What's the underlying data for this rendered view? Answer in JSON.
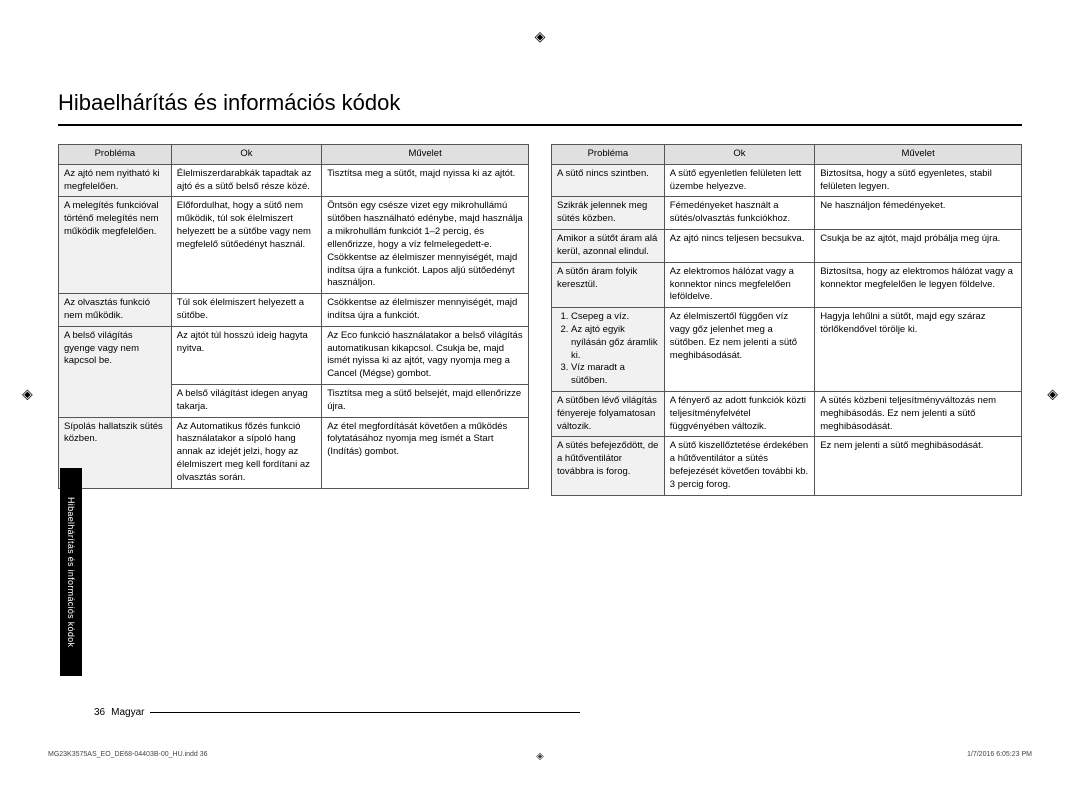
{
  "title": "Hibaelhárítás és információs kódok",
  "sideTab": "Hibaelhárítás és információs kódok",
  "headers": {
    "problem": "Probléma",
    "cause": "Ok",
    "action": "Művelet"
  },
  "leftTable": [
    {
      "problem": "Az ajtó nem nyitható ki megfelelően.",
      "cause": "Élelmiszerdarabkák tapadtak az ajtó és a sütő belső része közé.",
      "action": "Tisztítsa meg a sütőt, majd nyissa ki az ajtót."
    },
    {
      "problem": "A melegítés funkcióval történő melegítés nem működik megfelelően.",
      "cause": "Előfordulhat, hogy a sütő nem működik, túl sok élelmiszert helyezett be a sütőbe vagy nem megfelelő sütőedényt használ.",
      "action": "Öntsön egy csésze vizet egy mikrohullámú sütőben használható edénybe, majd használja a mikrohullám funkciót 1–2 percig, és ellenőrizze, hogy a víz felmelegedett-e. Csökkentse az élelmiszer mennyiségét, majd indítsa újra a funkciót. Lapos aljú sütőedényt használjon."
    },
    {
      "problem": "Az olvasztás funkció nem működik.",
      "cause": "Túl sok élelmiszert helyezett a sütőbe.",
      "action": "Csökkentse az élelmiszer mennyiségét, majd indítsa újra a funkciót."
    },
    {
      "problem": "A belső világítás gyenge vagy nem kapcsol be.",
      "causes": [
        "Az ajtót túl hosszú ideig hagyta nyitva.",
        "A belső világítást idegen anyag takarja."
      ],
      "actions": [
        "Az Eco funkció használatakor a belső világítás automatikusan kikapcsol. Csukja be, majd ismét nyissa ki az ajtót, vagy nyomja meg a Cancel (Mégse) gombot.",
        "Tisztítsa meg a sütő belsejét, majd ellenőrizze újra."
      ]
    },
    {
      "problem": "Sípolás hallatszik sütés közben.",
      "cause": "Az Automatikus főzés funkció használatakor a sípoló hang annak az idejét jelzi, hogy az élelmiszert meg kell fordítani az olvasztás során.",
      "action": "Az étel megfordítását követően a működés folytatásához nyomja meg ismét a Start (Indítás) gombot."
    }
  ],
  "rightTable": [
    {
      "problem": "A sütő nincs szintben.",
      "cause": "A sütő egyenletlen felületen lett üzembe helyezve.",
      "action": "Biztosítsa, hogy a sütő egyenletes, stabil felületen legyen."
    },
    {
      "problem": "Szikrák jelennek meg sütés közben.",
      "cause": "Fémedényeket használt a sütés/olvasztás funkciókhoz.",
      "action": "Ne használjon fémedényeket."
    },
    {
      "problem": "Amikor a sütőt áram alá kerül, azonnal elindul.",
      "cause": "Az ajtó nincs teljesen becsukva.",
      "action": "Csukja be az ajtót, majd próbálja meg újra."
    },
    {
      "problem": "A sütőn áram folyik keresztül.",
      "cause": "Az elektromos hálózat vagy a konnektor nincs megfelelően leföldelve.",
      "action": "Biztosítsa, hogy az elektromos hálózat vagy a konnektor megfelelően le legyen földelve."
    },
    {
      "problem_list": [
        "Csepeg a víz.",
        "Az ajtó egyik nyílásán gőz áramlik ki.",
        "Víz maradt a sütőben."
      ],
      "cause": "Az élelmiszertől függően víz vagy gőz jelenhet meg a sütőben. Ez nem jelenti a sütő meghibásodását.",
      "action": "Hagyja lehűlni a sütőt, majd egy száraz törlőkendővel törölje ki."
    },
    {
      "problem": "A sütőben lévő világítás fényereje folyamatosan változik.",
      "cause": "A fényerő az adott funkciók közti teljesítményfelvétel függvényében változik.",
      "action": "A sütés közbeni teljesítményváltozás nem meghibásodás. Ez nem jelenti a sütő meghibásodását."
    },
    {
      "problem": "A sütés befejeződött, de a hűtőventilátor továbbra is forog.",
      "cause": "A sütő kiszellőztetése érdekében a hűtőventilátor a sütés befejezését követően további kb. 3 percig forog.",
      "action": "Ez nem jelenti a sütő meghibásodását."
    }
  ],
  "footer": {
    "pageNum": "36",
    "lang": "Magyar"
  },
  "printFooter": {
    "left": "MG23K3575AS_EO_DE68-04403B-00_HU.indd   36",
    "right": "1/7/2016   6:05:23 PM"
  },
  "colors": {
    "background": "#ffffff",
    "text": "#000000",
    "headerBg": "#e0e0e0",
    "problemBg": "#f1f1f1",
    "border": "#555555",
    "sideTabBg": "#000000",
    "sideTabText": "#ffffff"
  }
}
